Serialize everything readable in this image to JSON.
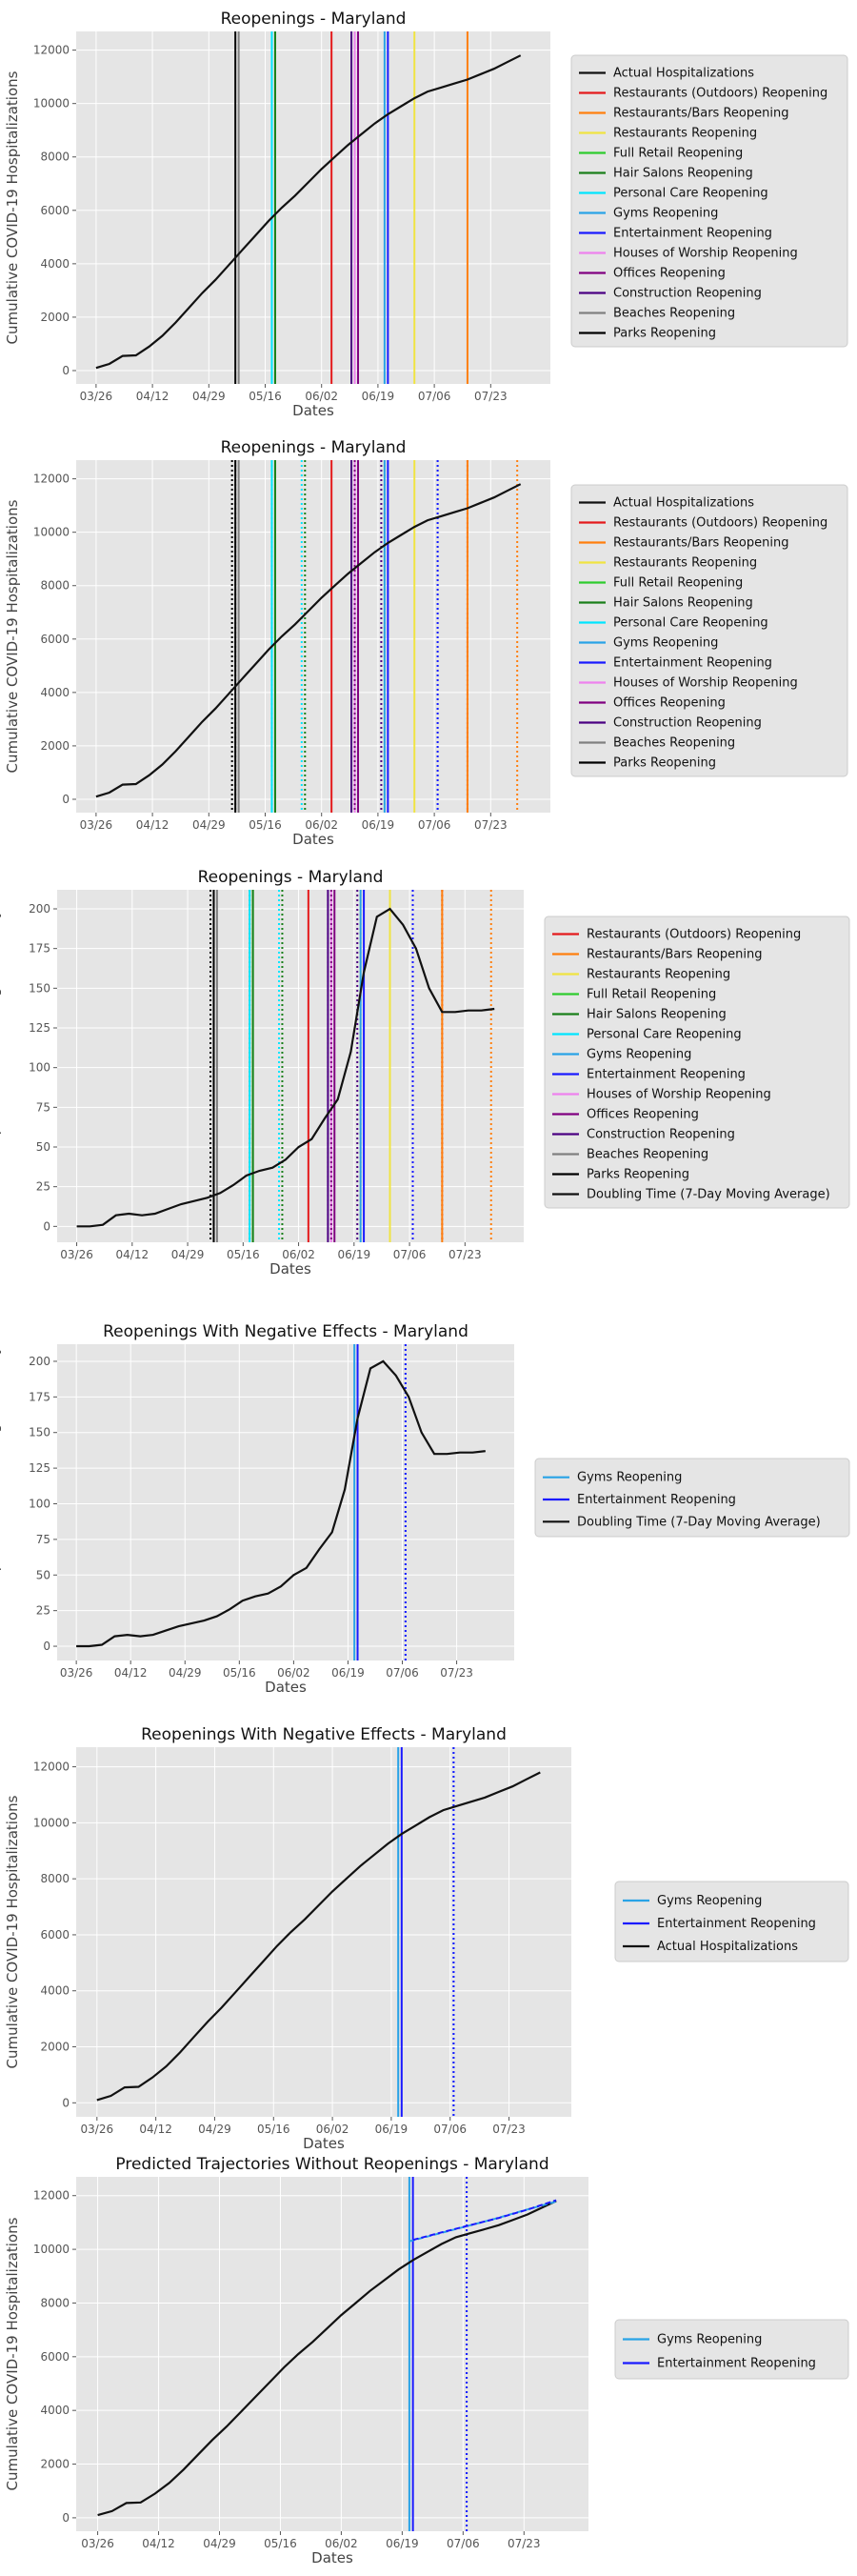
{
  "figure": {
    "dates": [
      "03/26",
      "04/12",
      "04/29",
      "05/16",
      "06/02",
      "06/19",
      "07/06",
      "07/23"
    ],
    "xlabel": "Dates"
  },
  "series": {
    "hospitalizations": {
      "x": [
        0,
        4,
        8,
        12,
        16,
        20,
        24,
        28,
        32,
        36,
        40,
        44,
        48,
        52,
        56,
        60,
        64,
        68,
        72,
        76,
        80,
        84,
        88,
        92,
        96,
        100,
        104,
        108,
        112,
        116,
        120,
        124,
        128
      ],
      "y": [
        100,
        250,
        550,
        570,
        900,
        1300,
        1800,
        2350,
        2900,
        3400,
        3950,
        4500,
        5050,
        5600,
        6100,
        6550,
        7050,
        7550,
        8000,
        8450,
        8850,
        9250,
        9600,
        9900,
        10200,
        10450,
        10600,
        10750,
        10900,
        11100,
        11300,
        11550,
        11800
      ]
    },
    "doubling_time": {
      "x": [
        0,
        4,
        8,
        12,
        16,
        20,
        24,
        28,
        32,
        36,
        40,
        44,
        48,
        52,
        56,
        60,
        64,
        68,
        72,
        76,
        80,
        84,
        88,
        92,
        96,
        100,
        104,
        108,
        112,
        116,
        120,
        124,
        128
      ],
      "y": [
        0,
        0,
        1,
        7,
        8,
        7,
        8,
        11,
        14,
        16,
        18,
        21,
        26,
        32,
        35,
        37,
        42,
        50,
        55,
        68,
        80,
        110,
        160,
        195,
        200,
        190,
        175,
        150,
        135,
        135,
        136,
        136,
        137
      ]
    }
  },
  "reopenings": [
    {
      "name": "Restaurants (Outdoors) Reopening",
      "color": "#e41a1c",
      "day": 71,
      "eff": 112
    },
    {
      "name": "Restaurants/Bars Reopening",
      "color": "#ff7f0e",
      "day": 112,
      "eff": 127
    },
    {
      "name": "Restaurants Reopening",
      "color": "#f0e442",
      "day": 96,
      "eff": 87
    },
    {
      "name": "Full Retail Reopening",
      "color": "#2ecc2e",
      "day": 54,
      "eff": 53
    },
    {
      "name": "Hair Salons Reopening",
      "color": "#1a7f1a",
      "day": 54,
      "eff": 63
    },
    {
      "name": "Personal Care Reopening",
      "color": "#00e5ff",
      "day": 53,
      "eff": 62
    },
    {
      "name": "Gyms Reopening",
      "color": "#29a3e6",
      "day": 87,
      "eff": 103
    },
    {
      "name": "Entertainment Reopening",
      "color": "#1a1aff",
      "day": 88,
      "eff": 103
    },
    {
      "name": "Houses of Worship Reopening",
      "color": "#ee82ee",
      "day": 78,
      "eff": 77
    },
    {
      "name": "Offices Reopening",
      "color": "#800080",
      "day": 79,
      "eff": 78
    },
    {
      "name": "Construction Reopening",
      "color": "#4b0082",
      "day": 77,
      "eff": 86
    },
    {
      "name": "Beaches Reopening",
      "color": "#808080",
      "day": 43,
      "eff": 42
    },
    {
      "name": "Parks Reopening",
      "color": "#000000",
      "day": 42,
      "eff": 41
    }
  ],
  "chart_data": [
    {
      "type": "line",
      "title": "Reopenings - Maryland",
      "xlabel": "Dates",
      "ylabel": "Cumulative COVID-19 Hospitalizations",
      "yticks": [
        0,
        2000,
        4000,
        6000,
        8000,
        10000,
        12000
      ],
      "ylim": [
        -500,
        12700
      ],
      "legend": [
        "Actual Hospitalizations",
        "Restaurants (Outdoors) Reopening",
        "Restaurants/Bars Reopening",
        "Restaurants Reopening",
        "Full Retail Reopening",
        "Hair Salons Reopening",
        "Personal Care Reopening",
        "Gyms Reopening",
        "Entertainment Reopening",
        "Houses of Worship Reopening",
        "Offices Reopening",
        "Construction Reopening",
        "Beaches Reopening",
        "Parks Reopening"
      ],
      "legend_position": "right"
    },
    {
      "type": "line",
      "title": "Reopenings - Maryland",
      "xlabel": "Dates",
      "ylabel": "Cumulative COVID-19 Hospitalizations",
      "yticks": [
        0,
        2000,
        4000,
        6000,
        8000,
        10000,
        12000
      ],
      "ylim": [
        -500,
        12700
      ],
      "legend": [
        "Actual Hospitalizations",
        "Restaurants (Outdoors) Reopening",
        "Restaurants/Bars Reopening",
        "Restaurants Reopening",
        "Full Retail Reopening",
        "Hair Salons Reopening",
        "Personal Care Reopening",
        "Gyms Reopening",
        "Entertainment Reopening",
        "Houses of Worship Reopening",
        "Offices Reopening",
        "Construction Reopening",
        "Beaches Reopening",
        "Parks Reopening"
      ],
      "legend_position": "right"
    },
    {
      "type": "line",
      "title": "Reopenings - Maryland",
      "xlabel": "Dates",
      "ylabel": "COVID-19 Hospitalization Doubling Time (Days)",
      "yticks": [
        0,
        25,
        50,
        75,
        100,
        125,
        150,
        175,
        200
      ],
      "ylim": [
        -10,
        212
      ],
      "legend": [
        "Restaurants (Outdoors) Reopening",
        "Restaurants/Bars Reopening",
        "Restaurants Reopening",
        "Full Retail Reopening",
        "Hair Salons Reopening",
        "Personal Care Reopening",
        "Gyms Reopening",
        "Entertainment Reopening",
        "Houses of Worship Reopening",
        "Offices Reopening",
        "Construction Reopening",
        "Beaches Reopening",
        "Parks Reopening",
        "Doubling Time (7-Day Moving Average)"
      ],
      "legend_position": "right"
    },
    {
      "type": "line",
      "title": "Reopenings With Negative Effects - Maryland",
      "xlabel": "Dates",
      "ylabel": "COVID-19 Hospitalization Doubling Time (Days)",
      "yticks": [
        0,
        25,
        50,
        75,
        100,
        125,
        150,
        175,
        200
      ],
      "ylim": [
        -10,
        212
      ],
      "legend": [
        "Gyms Reopening",
        "Entertainment Reopening",
        "Doubling Time (7-Day Moving Average)"
      ],
      "legend_position": "right"
    },
    {
      "type": "line",
      "title": "Reopenings With Negative Effects - Maryland",
      "xlabel": "Dates",
      "ylabel": "Cumulative COVID-19 Hospitalizations",
      "yticks": [
        0,
        2000,
        4000,
        6000,
        8000,
        10000,
        12000
      ],
      "ylim": [
        -500,
        12700
      ],
      "legend": [
        "Gyms Reopening",
        "Entertainment Reopening",
        "Actual Hospitalizations"
      ],
      "legend_position": "right"
    },
    {
      "type": "line",
      "title": "Predicted Trajectories Without Reopenings - Maryland",
      "xlabel": "Dates",
      "ylabel": "Cumulative COVID-19 Hospitalizations",
      "yticks": [
        0,
        2000,
        4000,
        6000,
        8000,
        10000,
        12000
      ],
      "ylim": [
        -500,
        12700
      ],
      "legend": [
        "Gyms Reopening",
        "Entertainment Reopening"
      ],
      "legend_position": "right",
      "prediction": {
        "gyms": {
          "x": [
            87,
            95,
            103,
            111,
            119,
            128
          ],
          "y": [
            10300,
            10580,
            10860,
            11140,
            11450,
            11780
          ]
        },
        "entertainment": {
          "x": [
            88,
            96,
            104,
            112,
            120,
            128
          ],
          "y": [
            10350,
            10630,
            10900,
            11170,
            11480,
            11830
          ]
        }
      }
    }
  ]
}
